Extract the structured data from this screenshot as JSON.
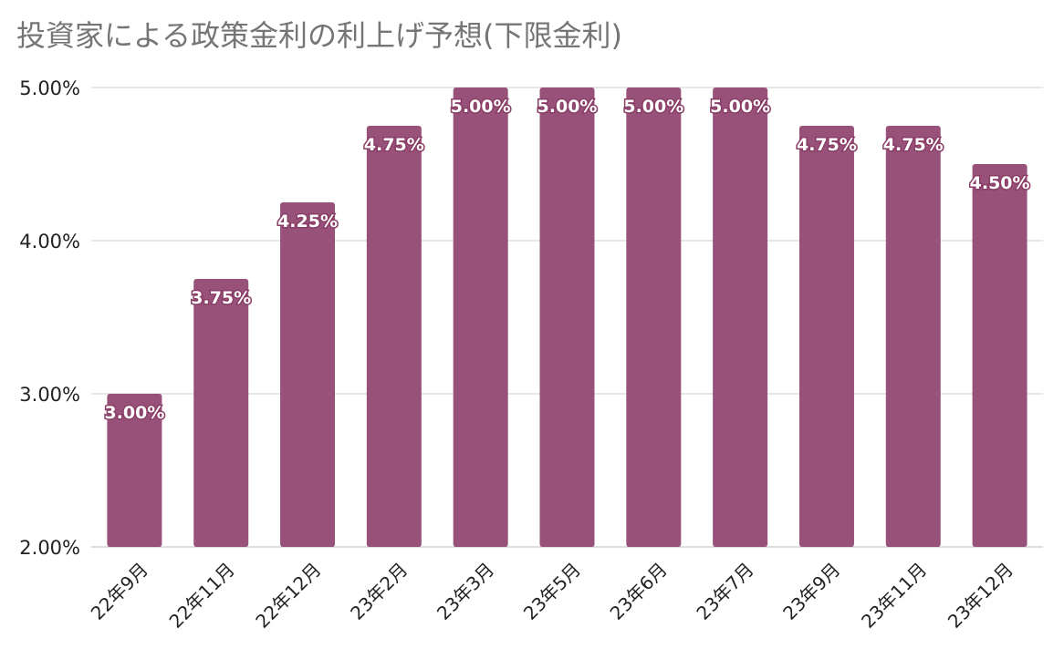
{
  "chart_data": {
    "type": "bar",
    "title": "投資家による政策金利の利上げ予想(下限金利)",
    "xlabel": "",
    "ylabel": "",
    "categories": [
      "22年9月",
      "22年11月",
      "22年12月",
      "23年2月",
      "23年3月",
      "23年5月",
      "23年6月",
      "23年7月",
      "23年9月",
      "23年11月",
      "23年12月"
    ],
    "values": [
      3.0,
      3.75,
      4.25,
      4.75,
      5.0,
      5.0,
      5.0,
      5.0,
      4.75,
      4.75,
      4.5
    ],
    "data_labels": [
      "3.00%",
      "3.75%",
      "4.25%",
      "4.75%",
      "5.00%",
      "5.00%",
      "5.00%",
      "5.00%",
      "4.75%",
      "4.75%",
      "4.50%"
    ],
    "ylim": [
      2.0,
      5.0
    ],
    "y_ticks": [
      2.0,
      3.0,
      4.0,
      5.0
    ],
    "y_tick_labels": [
      "2.00%",
      "3.00%",
      "4.00%",
      "5.00%"
    ],
    "grid": true,
    "bar_color": "#98527a",
    "grid_color": "#cccccc",
    "title_color": "#757575"
  }
}
